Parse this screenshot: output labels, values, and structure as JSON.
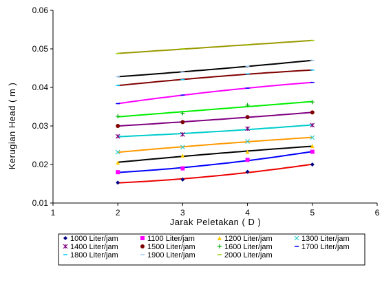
{
  "chart_data": {
    "type": "scatter",
    "xlabel": "Jarak Peletakan ( D )",
    "ylabel": "Kerugian Head ( m )",
    "xlim": [
      1,
      6
    ],
    "ylim": [
      0.01,
      0.06
    ],
    "xticks": [
      "1",
      "2",
      "3",
      "4",
      "5",
      "6"
    ],
    "yticks": [
      "0.01",
      "0.02",
      "0.03",
      "0.04",
      "0.05",
      "0.06"
    ],
    "x": [
      2,
      3,
      4,
      5
    ],
    "grid": false,
    "legend_position": "bottom",
    "trendlines": true,
    "series": [
      {
        "name": "1000 Liter/jam",
        "values": [
          0.0153,
          0.0161,
          0.0181,
          0.02
        ],
        "color": "#000080",
        "marker": "diamond"
      },
      {
        "name": "1100 Liter/jam",
        "values": [
          0.018,
          0.019,
          0.0212,
          0.0233
        ],
        "color": "#ff00ff",
        "marker": "square"
      },
      {
        "name": "1200 Liter/jam",
        "values": [
          0.0205,
          0.0223,
          0.0233,
          0.0248
        ],
        "color": "#ffcc00",
        "marker": "triangle"
      },
      {
        "name": "1300 Liter/jam",
        "values": [
          0.0232,
          0.0245,
          0.026,
          0.027
        ],
        "color": "#33cccc",
        "marker": "x"
      },
      {
        "name": "1400 Liter/jam",
        "values": [
          0.0273,
          0.0278,
          0.0293,
          0.0302
        ],
        "color": "#800080",
        "marker": "star"
      },
      {
        "name": "1500 Liter/jam",
        "values": [
          0.03,
          0.031,
          0.0323,
          0.0335
        ],
        "color": "#800000",
        "marker": "circle"
      },
      {
        "name": "1600 Liter/jam",
        "values": [
          0.0325,
          0.0333,
          0.0354,
          0.0362
        ],
        "color": "#00aa00",
        "marker": "plus"
      },
      {
        "name": "1700 Liter/jam",
        "values": [
          0.0358,
          0.038,
          0.0398,
          0.0413
        ],
        "color": "#0000ff",
        "marker": "dash"
      },
      {
        "name": "1800 Liter/jam",
        "values": [
          0.0405,
          0.042,
          0.0435,
          0.0445
        ],
        "color": "#00ccff",
        "marker": "dash"
      },
      {
        "name": "1900 Liter/jam",
        "values": [
          0.0428,
          0.044,
          0.0455,
          0.047
        ],
        "color": "#99ccff",
        "marker": "dash"
      },
      {
        "name": "2000 Liter/jam",
        "values": [
          0.0488,
          0.05,
          0.051,
          0.0522
        ],
        "color": "#99cc00",
        "marker": "dash"
      }
    ],
    "trendline_colors": [
      "#ee0000",
      "#0000ff",
      "#000000",
      "#ff9900",
      "#00cccc",
      "#800080",
      "#00ee00",
      "#ff00ff",
      "#800000",
      "#000000",
      "#999900"
    ]
  }
}
